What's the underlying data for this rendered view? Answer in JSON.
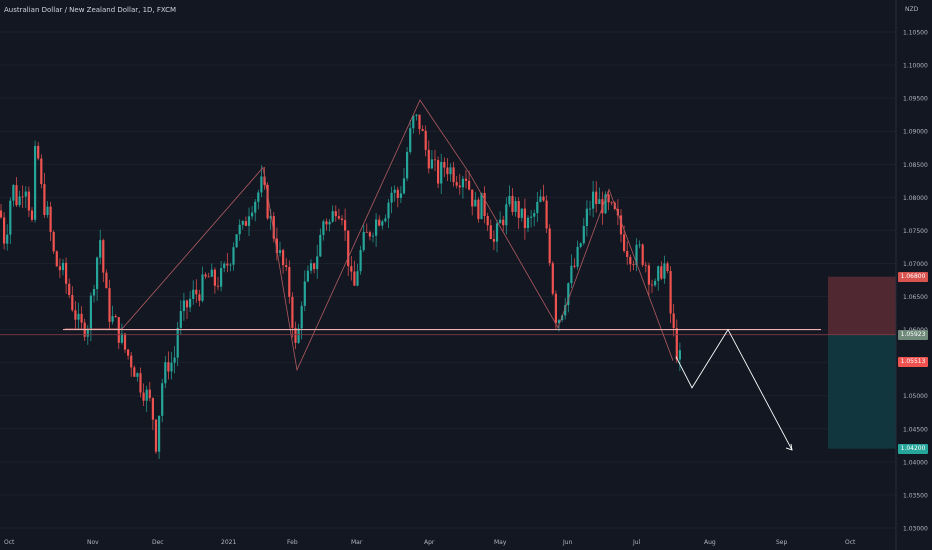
{
  "header": {
    "symbol_title": "Australian Dollar / New Zealand Dollar, 1D, FXCM",
    "currency": "NZD"
  },
  "colors": {
    "background": "#131722",
    "up_candle": "#26a69a",
    "down_candle": "#ef5350",
    "pattern_line": "#b05b60",
    "support_line": "#f0b0b0",
    "projection_line": "#ffffff",
    "stop_zone": "#5a2c35",
    "target_zone": "#133a40"
  },
  "chart_data": {
    "type": "candlestick",
    "y_ticks": [
      "1.10500",
      "1.10000",
      "1.09500",
      "1.09000",
      "1.08500",
      "1.08000",
      "1.07500",
      "1.07000",
      "1.06500",
      "1.06000",
      "1.05500",
      "1.05000",
      "1.04500",
      "1.04000",
      "1.03500",
      "1.03000"
    ],
    "x_ticks": [
      "Oct",
      "Nov",
      "Dec",
      "2021",
      "Feb",
      "Mar",
      "Apr",
      "May",
      "Jun",
      "Jul",
      "Aug",
      "Sep",
      "Oct"
    ],
    "ylim": [
      1.0296,
      1.1081
    ],
    "price_labels": {
      "stop": "1.06800",
      "entry": "1.05923",
      "current": "1.05513",
      "target": "1.04200"
    },
    "ohlc_path": [
      [
        0,
        1.078
      ],
      [
        5,
        1.073
      ],
      [
        12,
        1.082
      ],
      [
        18,
        1.079
      ],
      [
        25,
        1.083
      ],
      [
        32,
        1.076
      ],
      [
        36,
        1.089
      ],
      [
        42,
        1.08
      ],
      [
        48,
        1.077
      ],
      [
        55,
        1.07
      ],
      [
        62,
        1.069
      ],
      [
        70,
        1.065
      ],
      [
        80,
        1.06
      ],
      [
        88,
        1.061
      ],
      [
        95,
        1.069
      ],
      [
        100,
        1.074
      ],
      [
        105,
        1.066
      ],
      [
        110,
        1.062
      ],
      [
        115,
        1.061
      ],
      [
        120,
        1.059
      ],
      [
        125,
        1.057
      ],
      [
        132,
        1.055
      ],
      [
        140,
        1.052
      ],
      [
        147,
        1.05
      ],
      [
        152,
        1.048
      ],
      [
        156,
        1.043
      ],
      [
        162,
        1.052
      ],
      [
        168,
        1.055
      ],
      [
        174,
        1.055
      ],
      [
        178,
        1.061
      ],
      [
        185,
        1.063
      ],
      [
        192,
        1.065
      ],
      [
        200,
        1.066
      ],
      [
        208,
        1.068
      ],
      [
        215,
        1.067
      ],
      [
        222,
        1.068
      ],
      [
        230,
        1.071
      ],
      [
        236,
        1.075
      ],
      [
        243,
        1.075
      ],
      [
        250,
        1.079
      ],
      [
        256,
        1.08
      ],
      [
        262,
        1.082
      ],
      [
        268,
        1.078
      ],
      [
        273,
        1.075
      ],
      [
        280,
        1.071
      ],
      [
        286,
        1.068
      ],
      [
        290,
        1.065
      ],
      [
        297,
        1.055
      ],
      [
        300,
        1.064
      ],
      [
        306,
        1.067
      ],
      [
        312,
        1.069
      ],
      [
        318,
        1.072
      ],
      [
        324,
        1.077
      ],
      [
        330,
        1.076
      ],
      [
        336,
        1.079
      ],
      [
        342,
        1.078
      ],
      [
        348,
        1.071
      ],
      [
        353,
        1.065
      ],
      [
        358,
        1.07
      ],
      [
        363,
        1.073
      ],
      [
        370,
        1.075
      ],
      [
        378,
        1.077
      ],
      [
        385,
        1.078
      ],
      [
        392,
        1.081
      ],
      [
        398,
        1.08
      ],
      [
        404,
        1.083
      ],
      [
        408,
        1.088
      ],
      [
        414,
        1.092
      ],
      [
        420,
        1.091
      ],
      [
        426,
        1.087
      ],
      [
        432,
        1.085
      ],
      [
        438,
        1.083
      ],
      [
        445,
        1.085
      ],
      [
        452,
        1.084
      ],
      [
        458,
        1.083
      ],
      [
        465,
        1.084
      ],
      [
        470,
        1.081
      ],
      [
        476,
        1.078
      ],
      [
        482,
        1.079
      ],
      [
        488,
        1.077
      ],
      [
        494,
        1.073
      ],
      [
        500,
        1.076
      ],
      [
        506,
        1.078
      ],
      [
        512,
        1.079
      ],
      [
        518,
        1.078
      ],
      [
        524,
        1.076
      ],
      [
        530,
        1.076
      ],
      [
        536,
        1.078
      ],
      [
        542,
        1.08
      ],
      [
        548,
        1.074
      ],
      [
        553,
        1.066
      ],
      [
        556,
        1.062
      ],
      [
        560,
        1.062
      ],
      [
        565,
        1.065
      ],
      [
        570,
        1.068
      ],
      [
        576,
        1.07
      ],
      [
        582,
        1.074
      ],
      [
        588,
        1.078
      ],
      [
        593,
        1.08
      ],
      [
        598,
        1.079
      ],
      [
        604,
        1.079
      ],
      [
        610,
        1.078
      ],
      [
        616,
        1.077
      ],
      [
        622,
        1.074
      ],
      [
        628,
        1.072
      ],
      [
        634,
        1.071
      ],
      [
        640,
        1.072
      ],
      [
        646,
        1.07
      ],
      [
        650,
        1.068
      ],
      [
        655,
        1.066
      ],
      [
        660,
        1.069
      ],
      [
        666,
        1.07
      ],
      [
        670,
        1.063
      ],
      [
        675,
        1.058
      ],
      [
        679,
        1.0555
      ],
      [
        682,
        1.0551
      ]
    ],
    "drawings": {
      "zigzag_pattern": [
        [
          65,
          1.0601
        ],
        [
          97,
          1.0601
        ],
        [
          122,
          1.0601
        ],
        [
          263,
          1.0845
        ],
        [
          297,
          1.0539
        ],
        [
          420,
          1.0947
        ],
        [
          470,
          1.0835
        ],
        [
          558,
          1.0603
        ],
        [
          609,
          1.0812
        ],
        [
          673,
          1.0553
        ]
      ],
      "support_level": 1.06,
      "entry_level": 1.05923,
      "projection": [
        [
          676,
          1.0559
        ],
        [
          692,
          1.0512
        ],
        [
          728,
          1.06
        ],
        [
          792,
          1.0418
        ]
      ],
      "position_zone": {
        "x_start": 828,
        "x_end": 896,
        "stop": 1.068,
        "entry": 1.05923,
        "target": 1.042
      }
    }
  }
}
